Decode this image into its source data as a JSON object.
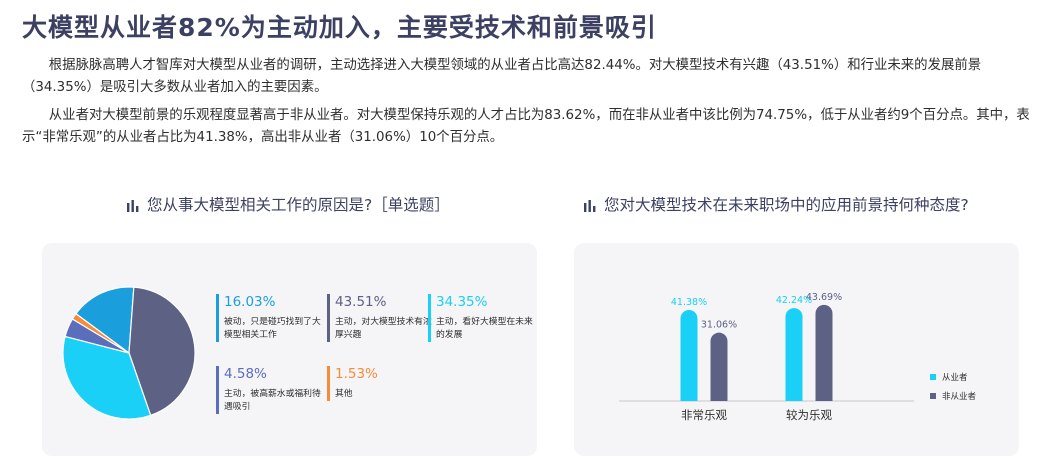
{
  "header": {
    "title": "大模型从业者82%为主动加入，主要受技术和前景吸引"
  },
  "paragraphs": {
    "p1": "根据脉脉高聘人才智库对大模型从业者的调研，主动选择进入大模型领域的从业者占比高达82.44%。对大模型技术有兴趣（43.51%）和行业未来的发展前景（34.35%）是吸引大多数从业者加入的主要因素。",
    "p2": "从业者对大模型前景的乐观程度显著高于非从业者。对大模型保持乐观的人才占比为83.62%，而在非从业者中该比例为74.75%，低于从业者约9个百分点。其中，表示“非常乐观”的从业者占比为41.38%，高出非从业者（31.06%）10个百分点。"
  },
  "left_chart": {
    "title": "您从事大模型相关工作的原因是?［单选题］"
  },
  "right_chart": {
    "title": "您对大模型技术在未来职场中的应用前景持何种态度?"
  },
  "colors": {
    "cyan": "#1ad0f7",
    "navy": "#5d6184",
    "purple": "#5b6ebc",
    "blue": "#1b9fdc",
    "orange": "#f68b3a"
  },
  "chart_data": [
    {
      "type": "pie",
      "title": "您从事大模型相关工作的原因是?［单选题］",
      "slices": [
        {
          "label": "被动，只是碰巧找到了大模型相关工作",
          "value": 16.03,
          "display": "16.03%",
          "color": "#1b9fdc"
        },
        {
          "label": "主动，对大模型技术有浓厚兴趣",
          "value": 43.51,
          "display": "43.51%",
          "color": "#5d6184"
        },
        {
          "label": "主动，看好大模型在未来的发展",
          "value": 34.35,
          "display": "34.35%",
          "color": "#1ad0f7"
        },
        {
          "label": "主动，被高薪水或福利待遇吸引",
          "value": 4.58,
          "display": "4.58%",
          "color": "#5b6ebc"
        },
        {
          "label": "其他",
          "value": 1.53,
          "display": "1.53%",
          "color": "#f68b3a"
        }
      ]
    },
    {
      "type": "bar",
      "title": "您对大模型技术在未来职场中的应用前景持何种态度?",
      "categories": [
        "非常乐观",
        "较为乐观"
      ],
      "series": [
        {
          "name": "从业者",
          "values": [
            41.38,
            42.24
          ],
          "color": "#1ad0f7"
        },
        {
          "name": "非从业者",
          "values": [
            31.06,
            43.69
          ],
          "color": "#5d6184"
        }
      ],
      "ylim": [
        0,
        50
      ],
      "legend": "right"
    }
  ]
}
